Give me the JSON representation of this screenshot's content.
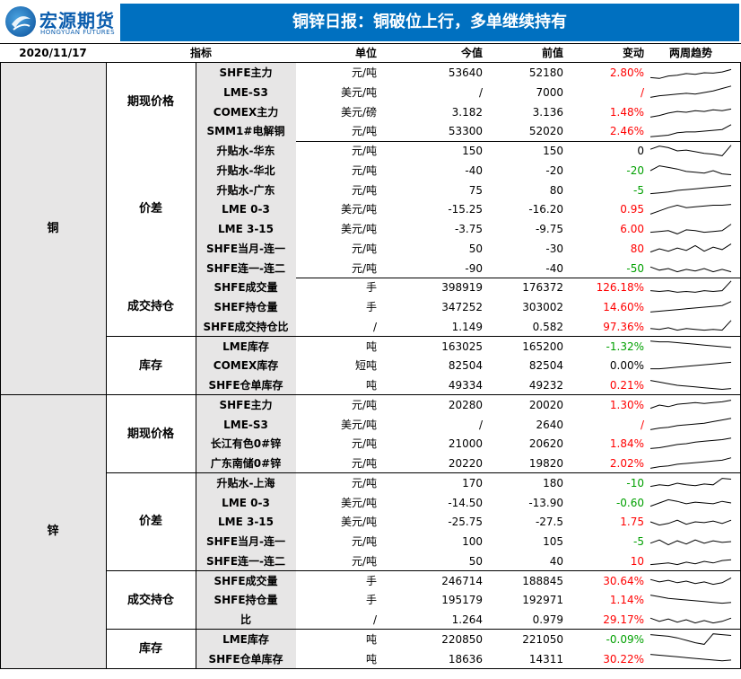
{
  "header": {
    "logo_cn": "宏源期货",
    "logo_en": "HONGYUAN FUTURES",
    "title": "铜锌日报：铜破位上行，多单继续持有"
  },
  "columns": {
    "date": "2020/11/17",
    "indicator": "指标",
    "unit": "单位",
    "current": "今值",
    "previous": "前值",
    "change": "变动",
    "trend": "两周趋势"
  },
  "colors": {
    "title_bg": "#0070c0",
    "positive": "#ff0000",
    "negative": "#00a000",
    "category_bg": "#e7e6e6"
  },
  "categories": [
    {
      "name": "铜",
      "groups": [
        {
          "name": "期现价格",
          "rows": [
            {
              "ind": "SHFE主力",
              "unit": "元/吨",
              "cur": "53640",
              "prev": "52180",
              "chg": "2.80%",
              "dir": "pos",
              "trend": [
                0.2,
                0.15,
                0.3,
                0.35,
                0.45,
                0.4,
                0.5,
                0.48,
                0.55,
                0.7
              ]
            },
            {
              "ind": "LME-S3",
              "unit": "美元/吨",
              "cur": "/",
              "prev": "7000",
              "chg": "/",
              "dir": "pos",
              "trend": [
                0.2,
                0.3,
                0.35,
                0.4,
                0.45,
                0.4,
                0.5,
                0.6,
                0.75,
                0.9
              ]
            },
            {
              "ind": "COMEX主力",
              "unit": "美元/磅",
              "cur": "3.182",
              "prev": "3.136",
              "chg": "1.48%",
              "dir": "pos",
              "trend": [
                0.2,
                0.3,
                0.45,
                0.55,
                0.5,
                0.6,
                0.55,
                0.65,
                0.6,
                0.7
              ]
            },
            {
              "ind": "SMM1#电解铜",
              "unit": "元/吨",
              "cur": "53300",
              "prev": "52020",
              "chg": "2.46%",
              "dir": "pos",
              "trend": [
                0.15,
                0.2,
                0.25,
                0.4,
                0.45,
                0.45,
                0.5,
                0.55,
                0.6,
                0.9
              ]
            }
          ]
        },
        {
          "name": "价差",
          "rows": [
            {
              "ind": "升贴水-华东",
              "unit": "元/吨",
              "cur": "150",
              "prev": "150",
              "chg": "0",
              "dir": "zero",
              "trend": [
                0.6,
                0.8,
                0.7,
                0.5,
                0.55,
                0.45,
                0.35,
                0.3,
                0.2,
                0.85
              ]
            },
            {
              "ind": "升贴水-华北",
              "unit": "元/吨",
              "cur": "-40",
              "prev": "-20",
              "chg": "-20",
              "dir": "neg",
              "trend": [
                0.5,
                0.8,
                0.7,
                0.6,
                0.45,
                0.4,
                0.35,
                0.5,
                0.3,
                0.25
              ]
            },
            {
              "ind": "升贴水-广东",
              "unit": "元/吨",
              "cur": "75",
              "prev": "80",
              "chg": "-5",
              "dir": "neg",
              "trend": [
                0.3,
                0.35,
                0.4,
                0.5,
                0.55,
                0.6,
                0.65,
                0.7,
                0.75,
                0.8
              ]
            },
            {
              "ind": "LME 0-3",
              "unit": "美元/吨",
              "cur": "-15.25",
              "prev": "-16.20",
              "chg": "0.95",
              "dir": "pos",
              "trend": [
                0.2,
                0.4,
                0.6,
                0.75,
                0.6,
                0.65,
                0.7,
                0.75,
                0.75,
                0.8
              ]
            },
            {
              "ind": "LME 3-15",
              "unit": "美元/吨",
              "cur": "-3.75",
              "prev": "-9.75",
              "chg": "6.00",
              "dir": "pos",
              "trend": [
                0.3,
                0.35,
                0.4,
                0.2,
                0.45,
                0.4,
                0.3,
                0.35,
                0.4,
                0.8
              ]
            },
            {
              "ind": "SHFE当月-连一",
              "unit": "元/吨",
              "cur": "50",
              "prev": "-30",
              "chg": "80",
              "dir": "pos",
              "trend": [
                0.3,
                0.5,
                0.35,
                0.55,
                0.4,
                0.7,
                0.35,
                0.6,
                0.45,
                0.8
              ]
            },
            {
              "ind": "SHFE连一-连二",
              "unit": "元/吨",
              "cur": "-90",
              "prev": "-40",
              "chg": "-50",
              "dir": "neg",
              "trend": [
                0.6,
                0.4,
                0.5,
                0.3,
                0.45,
                0.35,
                0.5,
                0.3,
                0.45,
                0.3
              ]
            }
          ]
        },
        {
          "name": "成交持仓",
          "rows": [
            {
              "ind": "SHFE成交量",
              "unit": "手",
              "cur": "398919",
              "prev": "176372",
              "chg": "126.18%",
              "dir": "pos",
              "trend": [
                0.3,
                0.25,
                0.3,
                0.2,
                0.25,
                0.2,
                0.3,
                0.25,
                0.3,
                0.9
              ]
            },
            {
              "ind": "SHEF持仓量",
              "unit": "手",
              "cur": "347252",
              "prev": "303002",
              "chg": "14.60%",
              "dir": "pos",
              "trend": [
                0.2,
                0.25,
                0.3,
                0.35,
                0.4,
                0.45,
                0.5,
                0.55,
                0.6,
                0.85
              ]
            },
            {
              "ind": "SHFE成交持仓比",
              "unit": "/",
              "cur": "1.149",
              "prev": "0.582",
              "chg": "97.36%",
              "dir": "pos",
              "trend": [
                0.4,
                0.35,
                0.45,
                0.3,
                0.4,
                0.35,
                0.3,
                0.35,
                0.3,
                0.9
              ]
            }
          ]
        },
        {
          "name": "库存",
          "rows": [
            {
              "ind": "LME库存",
              "unit": "吨",
              "cur": "163025",
              "prev": "165200",
              "chg": "-1.32%",
              "dir": "neg",
              "trend": [
                0.85,
                0.8,
                0.8,
                0.75,
                0.7,
                0.65,
                0.6,
                0.55,
                0.5,
                0.45
              ]
            },
            {
              "ind": "COMEX库存",
              "unit": "短吨",
              "cur": "82504",
              "prev": "82504",
              "chg": "0.00%",
              "dir": "zero",
              "trend": [
                0.3,
                0.3,
                0.35,
                0.4,
                0.45,
                0.5,
                0.55,
                0.6,
                0.65,
                0.7
              ]
            },
            {
              "ind": "SHFE仓单库存",
              "unit": "吨",
              "cur": "49334",
              "prev": "49232",
              "chg": "0.21%",
              "dir": "pos",
              "trend": [
                0.8,
                0.7,
                0.6,
                0.5,
                0.45,
                0.4,
                0.35,
                0.3,
                0.25,
                0.3
              ]
            }
          ]
        }
      ]
    },
    {
      "name": "锌",
      "groups": [
        {
          "name": "期现价格",
          "rows": [
            {
              "ind": "SHFE主力",
              "unit": "元/吨",
              "cur": "20280",
              "prev": "20020",
              "chg": "1.30%",
              "dir": "pos",
              "trend": [
                0.3,
                0.5,
                0.4,
                0.55,
                0.6,
                0.65,
                0.6,
                0.65,
                0.7,
                0.8
              ]
            },
            {
              "ind": "LME-S3",
              "unit": "美元/吨",
              "cur": "/",
              "prev": "2640",
              "chg": "/",
              "dir": "pos",
              "trend": [
                0.2,
                0.3,
                0.35,
                0.45,
                0.5,
                0.55,
                0.6,
                0.7,
                0.8,
                0.9
              ]
            },
            {
              "ind": "长江有色0#锌",
              "unit": "元/吨",
              "cur": "21000",
              "prev": "20620",
              "chg": "1.84%",
              "dir": "pos",
              "trend": [
                0.2,
                0.25,
                0.35,
                0.45,
                0.5,
                0.6,
                0.65,
                0.7,
                0.75,
                0.85
              ]
            },
            {
              "ind": "广东南储0#锌",
              "unit": "元/吨",
              "cur": "20220",
              "prev": "19820",
              "chg": "2.02%",
              "dir": "pos",
              "trend": [
                0.2,
                0.3,
                0.35,
                0.45,
                0.5,
                0.55,
                0.6,
                0.65,
                0.7,
                0.85
              ]
            }
          ]
        },
        {
          "name": "价差",
          "rows": [
            {
              "ind": "升贴水-上海",
              "unit": "元/吨",
              "cur": "170",
              "prev": "180",
              "chg": "-10",
              "dir": "neg",
              "trend": [
                0.3,
                0.4,
                0.35,
                0.5,
                0.4,
                0.35,
                0.45,
                0.4,
                0.8,
                0.75
              ]
            },
            {
              "ind": "LME 0-3",
              "unit": "美元/吨",
              "cur": "-14.50",
              "prev": "-13.90",
              "chg": "-0.60",
              "dir": "neg",
              "trend": [
                0.3,
                0.5,
                0.7,
                0.6,
                0.45,
                0.55,
                0.5,
                0.45,
                0.6,
                0.5
              ]
            },
            {
              "ind": "LME 3-15",
              "unit": "美元/吨",
              "cur": "-25.75",
              "prev": "-27.5",
              "chg": "1.75",
              "dir": "pos",
              "trend": [
                0.5,
                0.3,
                0.4,
                0.6,
                0.35,
                0.5,
                0.45,
                0.55,
                0.4,
                0.6
              ]
            },
            {
              "ind": "SHFE当月-连一",
              "unit": "元/吨",
              "cur": "100",
              "prev": "105",
              "chg": "-5",
              "dir": "neg",
              "trend": [
                0.4,
                0.6,
                0.3,
                0.55,
                0.35,
                0.6,
                0.4,
                0.55,
                0.45,
                0.5
              ]
            },
            {
              "ind": "SHFE连一-连二",
              "unit": "元/吨",
              "cur": "50",
              "prev": "40",
              "chg": "10",
              "dir": "pos",
              "trend": [
                0.3,
                0.35,
                0.4,
                0.3,
                0.45,
                0.35,
                0.5,
                0.4,
                0.55,
                0.6
              ]
            }
          ]
        },
        {
          "name": "成交持仓",
          "rows": [
            {
              "ind": "SHFE成交量",
              "unit": "手",
              "cur": "246714",
              "prev": "188845",
              "chg": "30.64%",
              "dir": "pos",
              "trend": [
                0.6,
                0.45,
                0.55,
                0.4,
                0.5,
                0.35,
                0.45,
                0.3,
                0.4,
                0.7
              ]
            },
            {
              "ind": "SHFE持仓量",
              "unit": "手",
              "cur": "195179",
              "prev": "192971",
              "chg": "1.14%",
              "dir": "pos",
              "trend": [
                0.8,
                0.7,
                0.6,
                0.55,
                0.5,
                0.45,
                0.4,
                0.35,
                0.3,
                0.35
              ]
            },
            {
              "ind": "比",
              "unit": "/",
              "cur": "1.264",
              "prev": "0.979",
              "chg": "29.17%",
              "dir": "pos",
              "trend": [
                0.6,
                0.4,
                0.55,
                0.35,
                0.5,
                0.3,
                0.45,
                0.3,
                0.4,
                0.6
              ]
            }
          ]
        },
        {
          "name": "库存",
          "rows": [
            {
              "ind": "LME库存",
              "unit": "吨",
              "cur": "220850",
              "prev": "221050",
              "chg": "-0.09%",
              "dir": "neg",
              "trend": [
                0.8,
                0.75,
                0.7,
                0.6,
                0.45,
                0.3,
                0.2,
                0.85,
                0.8,
                0.75
              ]
            },
            {
              "ind": "SHFE仓单库存",
              "unit": "吨",
              "cur": "18636",
              "prev": "14311",
              "chg": "30.22%",
              "dir": "pos",
              "trend": [
                0.8,
                0.75,
                0.7,
                0.65,
                0.6,
                0.55,
                0.5,
                0.45,
                0.4,
                0.45
              ]
            }
          ]
        }
      ]
    }
  ]
}
